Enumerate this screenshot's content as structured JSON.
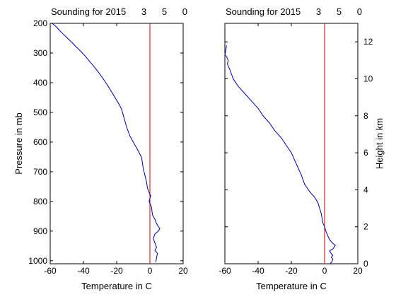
{
  "window": {
    "background": "#ffffff"
  },
  "chart_data": [
    {
      "type": "line",
      "title": "Sounding for 2015      3      5      0",
      "xlabel": "Temperature in C",
      "ylabel": "Pressure in mb",
      "xlim": [
        -60,
        20
      ],
      "ylim": [
        1010,
        200
      ],
      "y_reversed": true,
      "x_ticks": [
        -60,
        -40,
        -20,
        0,
        20
      ],
      "x_tick_labels": [
        "-60",
        "-40",
        "-20",
        "0",
        "20"
      ],
      "y_ticks": [
        200,
        300,
        400,
        500,
        600,
        700,
        800,
        900,
        1000
      ],
      "y_tick_labels": [
        "200",
        "300",
        "400",
        "500",
        "600",
        "700",
        "800",
        "900",
        "1000"
      ],
      "y_axis_side": "left",
      "grid": false,
      "ref_line": {
        "x": 0,
        "color": "#cc0000"
      },
      "series": [
        {
          "color": "#0000aa",
          "points": [
            [
              -59,
              200
            ],
            [
              -57,
              208
            ],
            [
              -55,
              220
            ],
            [
              -53,
              232
            ],
            [
              -50,
              248
            ],
            [
              -47,
              264
            ],
            [
              -45,
              276
            ],
            [
              -42,
              292
            ],
            [
              -39,
              310
            ],
            [
              -36,
              330
            ],
            [
              -33,
              350
            ],
            [
              -30,
              372
            ],
            [
              -27,
              396
            ],
            [
              -24,
              422
            ],
            [
              -21,
              450
            ],
            [
              -18,
              478
            ],
            [
              -17,
              490
            ],
            [
              -16,
              510
            ],
            [
              -14,
              550
            ],
            [
              -12,
              580
            ],
            [
              -9,
              610
            ],
            [
              -7,
              630
            ],
            [
              -5,
              652
            ],
            [
              -4,
              690
            ],
            [
              -3,
              712
            ],
            [
              -2,
              735
            ],
            [
              -1.5,
              755
            ],
            [
              -0.5,
              770
            ],
            [
              0.5,
              780
            ],
            [
              0,
              790
            ],
            [
              -0.5,
              800
            ],
            [
              1,
              820
            ],
            [
              1.5,
              845
            ],
            [
              3,
              860
            ],
            [
              4,
              875
            ],
            [
              6,
              892
            ],
            [
              5,
              900
            ],
            [
              3,
              910
            ],
            [
              2,
              925
            ],
            [
              3,
              940
            ],
            [
              4,
              955
            ],
            [
              3,
              965
            ],
            [
              4.5,
              975
            ],
            [
              4,
              990
            ],
            [
              3.5,
              1005
            ]
          ]
        }
      ]
    },
    {
      "type": "line",
      "title": "Sounding for 2015      3      5      0",
      "xlabel": "Temperature in C",
      "ylabel": "Height in km",
      "xlim": [
        -60,
        20
      ],
      "ylim": [
        0,
        13
      ],
      "x_ticks": [
        -60,
        -40,
        -20,
        0,
        20
      ],
      "x_tick_labels": [
        "-60",
        "-40",
        "-20",
        "0",
        "20"
      ],
      "y_ticks": [
        0,
        2,
        4,
        6,
        8,
        10,
        12
      ],
      "y_tick_labels": [
        "0",
        "2",
        "4",
        "6",
        "8",
        "10",
        "12"
      ],
      "y_axis_side": "right",
      "grid": false,
      "ref_line": {
        "x": 0,
        "color": "#cc0000"
      },
      "series": [
        {
          "color": "#0000aa",
          "points": [
            [
              -59,
              11.8
            ],
            [
              -59.5,
              11.5
            ],
            [
              -60,
              11.3
            ],
            [
              -59,
              11.2
            ],
            [
              -58,
              11.0
            ],
            [
              -58.5,
              10.8
            ],
            [
              -57,
              10.5
            ],
            [
              -55,
              10.0
            ],
            [
              -52,
              9.6
            ],
            [
              -49,
              9.3
            ],
            [
              -46,
              9.0
            ],
            [
              -43,
              8.7
            ],
            [
              -40,
              8.4
            ],
            [
              -37,
              8.0
            ],
            [
              -33,
              7.6
            ],
            [
              -30,
              7.2
            ],
            [
              -26,
              6.8
            ],
            [
              -23,
              6.4
            ],
            [
              -20,
              6.0
            ],
            [
              -18,
              5.6
            ],
            [
              -16,
              5.2
            ],
            [
              -14,
              4.8
            ],
            [
              -12,
              4.3
            ],
            [
              -9,
              3.9
            ],
            [
              -6,
              3.6
            ],
            [
              -4,
              3.3
            ],
            [
              -3,
              3.0
            ],
            [
              -2,
              2.7
            ],
            [
              -1,
              2.2
            ],
            [
              0,
              2.0
            ],
            [
              1,
              1.7
            ],
            [
              2,
              1.5
            ],
            [
              3,
              1.3
            ],
            [
              5,
              1.1
            ],
            [
              6.5,
              1.0
            ],
            [
              5,
              0.8
            ],
            [
              3,
              0.7
            ],
            [
              4,
              0.55
            ],
            [
              5,
              0.45
            ],
            [
              4,
              0.35
            ],
            [
              5,
              0.25
            ],
            [
              4.5,
              0.12
            ],
            [
              3.5,
              0.02
            ]
          ]
        }
      ]
    }
  ]
}
